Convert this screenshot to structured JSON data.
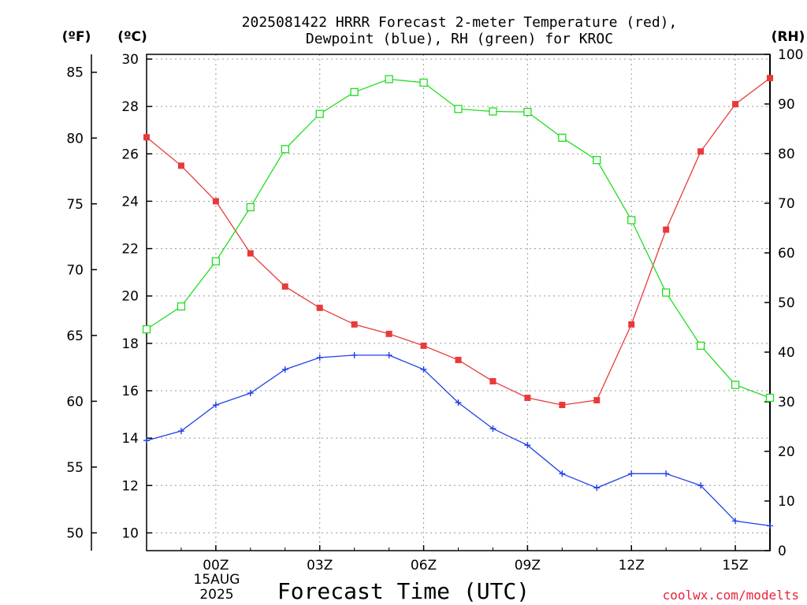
{
  "chart_data": {
    "type": "line",
    "title_line1": "2025081422 HRRR Forecast 2-meter Temperature (red),",
    "title_line2": "Dewpoint (blue), RH (green) for KROC",
    "xlabel": "Forecast Time (UTC)",
    "credit": "coolwx.com/modelts",
    "date_label_line1": "15AUG",
    "date_label_line2": "2025",
    "units": {
      "fahrenheit": "(ºF)",
      "celsius": "(ºC)",
      "rh": "(RH)"
    },
    "x_range": [
      -2,
      16
    ],
    "x_ticks": [
      {
        "x": 0,
        "label": "00Z"
      },
      {
        "x": 3,
        "label": "03Z"
      },
      {
        "x": 6,
        "label": "06Z"
      },
      {
        "x": 9,
        "label": "09Z"
      },
      {
        "x": 12,
        "label": "12Z"
      },
      {
        "x": 15,
        "label": "15Z"
      }
    ],
    "celsius_range": [
      9.25,
      30.2
    ],
    "celsius_ticks": [
      "10",
      "12",
      "14",
      "16",
      "18",
      "20",
      "22",
      "24",
      "26",
      "28",
      "30"
    ],
    "fahrenheit_ticks": [
      "50",
      "55",
      "60",
      "65",
      "70",
      "75",
      "80",
      "85"
    ],
    "rh_range": [
      0,
      100
    ],
    "rh_ticks": [
      "0",
      "10",
      "20",
      "30",
      "40",
      "50",
      "60",
      "70",
      "80",
      "90",
      "100"
    ],
    "grid": true,
    "x": [
      -2,
      -1,
      0,
      1,
      2,
      3,
      4,
      5,
      6,
      7,
      8,
      9,
      10,
      11,
      12,
      13,
      14,
      15,
      16
    ],
    "series": [
      {
        "name": "Temperature",
        "axis": "celsius",
        "color": "#e83a3a",
        "marker": "filled-square",
        "values": [
          26.7,
          25.5,
          24.0,
          21.8,
          20.4,
          19.5,
          18.8,
          18.4,
          17.9,
          17.3,
          16.4,
          15.7,
          15.4,
          15.6,
          18.8,
          22.8,
          26.1,
          28.1,
          29.2
        ]
      },
      {
        "name": "Dewpoint",
        "axis": "celsius",
        "color": "#2040e8",
        "marker": "plus",
        "values": [
          13.9,
          14.3,
          15.4,
          15.9,
          16.9,
          17.4,
          17.5,
          17.5,
          16.9,
          15.5,
          14.4,
          13.7,
          12.5,
          11.9,
          12.5,
          12.5,
          12.0,
          10.5,
          10.3
        ]
      },
      {
        "name": "RH",
        "axis": "rh",
        "color": "#22dd22",
        "marker": "open-square",
        "values": [
          44.6,
          49.2,
          58.3,
          69.2,
          80.9,
          88.0,
          92.4,
          95.0,
          94.3,
          89.0,
          88.5,
          88.4,
          83.2,
          78.7,
          66.6,
          52.0,
          41.3,
          33.4,
          30.8
        ]
      }
    ]
  }
}
